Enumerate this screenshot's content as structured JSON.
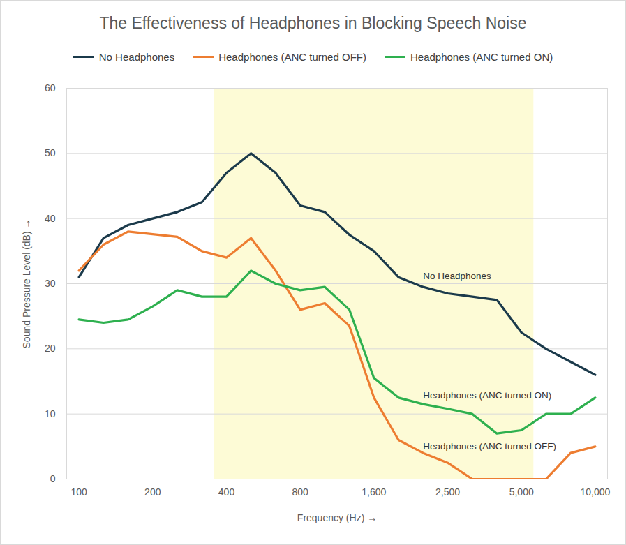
{
  "chart_data": {
    "type": "line",
    "title": "The Effectiveness of Headphones in Blocking Speech Noise",
    "x_label": "Frequency (Hz)",
    "y_label": "Sound Pressure Level (dB)",
    "categories": [
      "100",
      null,
      null,
      "200",
      null,
      null,
      "400",
      null,
      null,
      "800",
      null,
      null,
      "1,600",
      null,
      null,
      "2,500",
      null,
      null,
      "5,000",
      null,
      null,
      "10,000"
    ],
    "series": [
      {
        "name": "No Headphones",
        "color": "#1b3a4b",
        "values": [
          31,
          37,
          39,
          40,
          41,
          42.5,
          47,
          50,
          47,
          42,
          41,
          37.5,
          35,
          31,
          29.5,
          28.5,
          28,
          27.5,
          22.5,
          20,
          18,
          16
        ]
      },
      {
        "name": "Headphones (ANC turned OFF)",
        "color": "#ed7d31",
        "values": [
          32,
          36,
          38,
          37.6,
          37.2,
          35,
          34,
          37,
          32,
          26,
          27,
          23.5,
          12.5,
          6,
          4,
          2.5,
          0,
          0,
          0,
          0,
          4,
          5
        ]
      },
      {
        "name": "Headphones (ANC turned ON)",
        "color": "#2eb04f",
        "values": [
          24.5,
          24,
          24.5,
          26.5,
          29,
          28,
          28,
          32,
          30,
          29,
          29.5,
          26,
          15.5,
          12.5,
          11.5,
          10.8,
          10,
          7,
          7.5,
          10,
          10,
          12.5
        ]
      }
    ],
    "ylim": [
      0,
      60
    ],
    "yticks": [
      0,
      10,
      20,
      30,
      40,
      50,
      60
    ],
    "grid": true,
    "legend": "top",
    "highlight": {
      "x_start": 5.5,
      "x_end": 18.5,
      "color": "#fdfbd6"
    },
    "annotations": [
      {
        "text": "No Headphones",
        "x": 14,
        "y": 31.2
      },
      {
        "text": "Headphones (ANC turned ON)",
        "x": 14,
        "y": 12.8
      },
      {
        "text": "Headphones (ANC turned OFF)",
        "x": 14,
        "y": 5.0
      }
    ]
  }
}
